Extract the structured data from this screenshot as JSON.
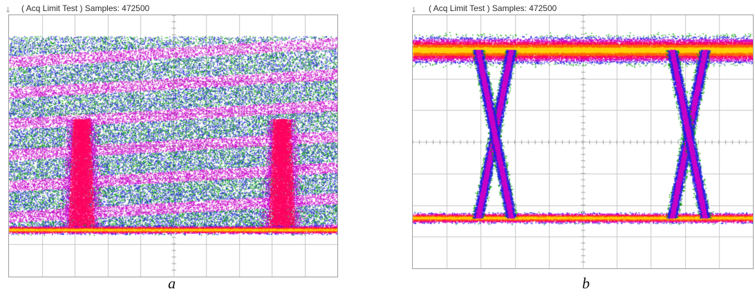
{
  "panels": [
    {
      "header": "( Acq Limit Test )  Samples: 472500",
      "marker": "↓",
      "caption": "a",
      "pattern": "closed-eye",
      "colors": [
        "#00a000",
        "#2020e0",
        "#c800c8",
        "#ff0060",
        "#ff6000",
        "#ffd000"
      ]
    },
    {
      "header": "( Acq Limit Test )  Samples: 472500",
      "marker": "↓",
      "caption": "b",
      "pattern": "open-eye",
      "colors": [
        "#00a000",
        "#2020e0",
        "#c800c8",
        "#ff0060",
        "#ff6000",
        "#ffd000"
      ]
    }
  ]
}
